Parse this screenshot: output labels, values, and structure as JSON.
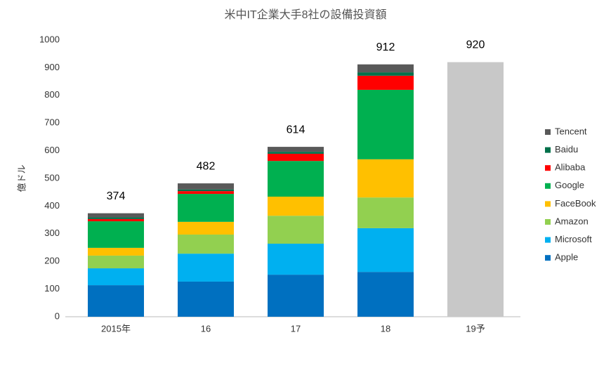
{
  "chart_data": {
    "type": "stacked_bar",
    "title": "米中IT企業大手8社の設備投資額",
    "y_label": "億ドル",
    "categories": [
      "2015年",
      "16",
      "17",
      "18",
      "19予"
    ],
    "series": [
      {
        "name": "Apple",
        "color": "#0070c0",
        "values": [
          114,
          127,
          152,
          162,
          null
        ]
      },
      {
        "name": "Microsoft",
        "color": "#00b0f0",
        "values": [
          61,
          101,
          112,
          158,
          null
        ]
      },
      {
        "name": "Amazon",
        "color": "#92d050",
        "values": [
          46,
          69,
          101,
          111,
          null
        ]
      },
      {
        "name": "FaceBook",
        "color": "#ffc000",
        "values": [
          28,
          46,
          69,
          138,
          null
        ]
      },
      {
        "name": "Google",
        "color": "#00b050",
        "values": [
          96,
          101,
          129,
          251,
          null
        ]
      },
      {
        "name": "Alibaba",
        "color": "#ff0000",
        "values": [
          8,
          10,
          26,
          51,
          null
        ]
      },
      {
        "name": "Baidu",
        "color": "#00704a",
        "values": [
          6,
          6,
          7,
          12,
          null
        ]
      },
      {
        "name": "Tencent",
        "color": "#595959",
        "values": [
          15,
          22,
          18,
          29,
          null
        ]
      },
      {
        "color": "#c8c8c8",
        "values": [
          null,
          null,
          null,
          null,
          920
        ]
      }
    ],
    "totals": [
      374,
      482,
      614,
      912,
      920
    ],
    "ylim": [
      0,
      1000
    ],
    "yticks": [
      0,
      100,
      200,
      300,
      400,
      500,
      600,
      700,
      800,
      900,
      1000
    ],
    "grid": false
  }
}
